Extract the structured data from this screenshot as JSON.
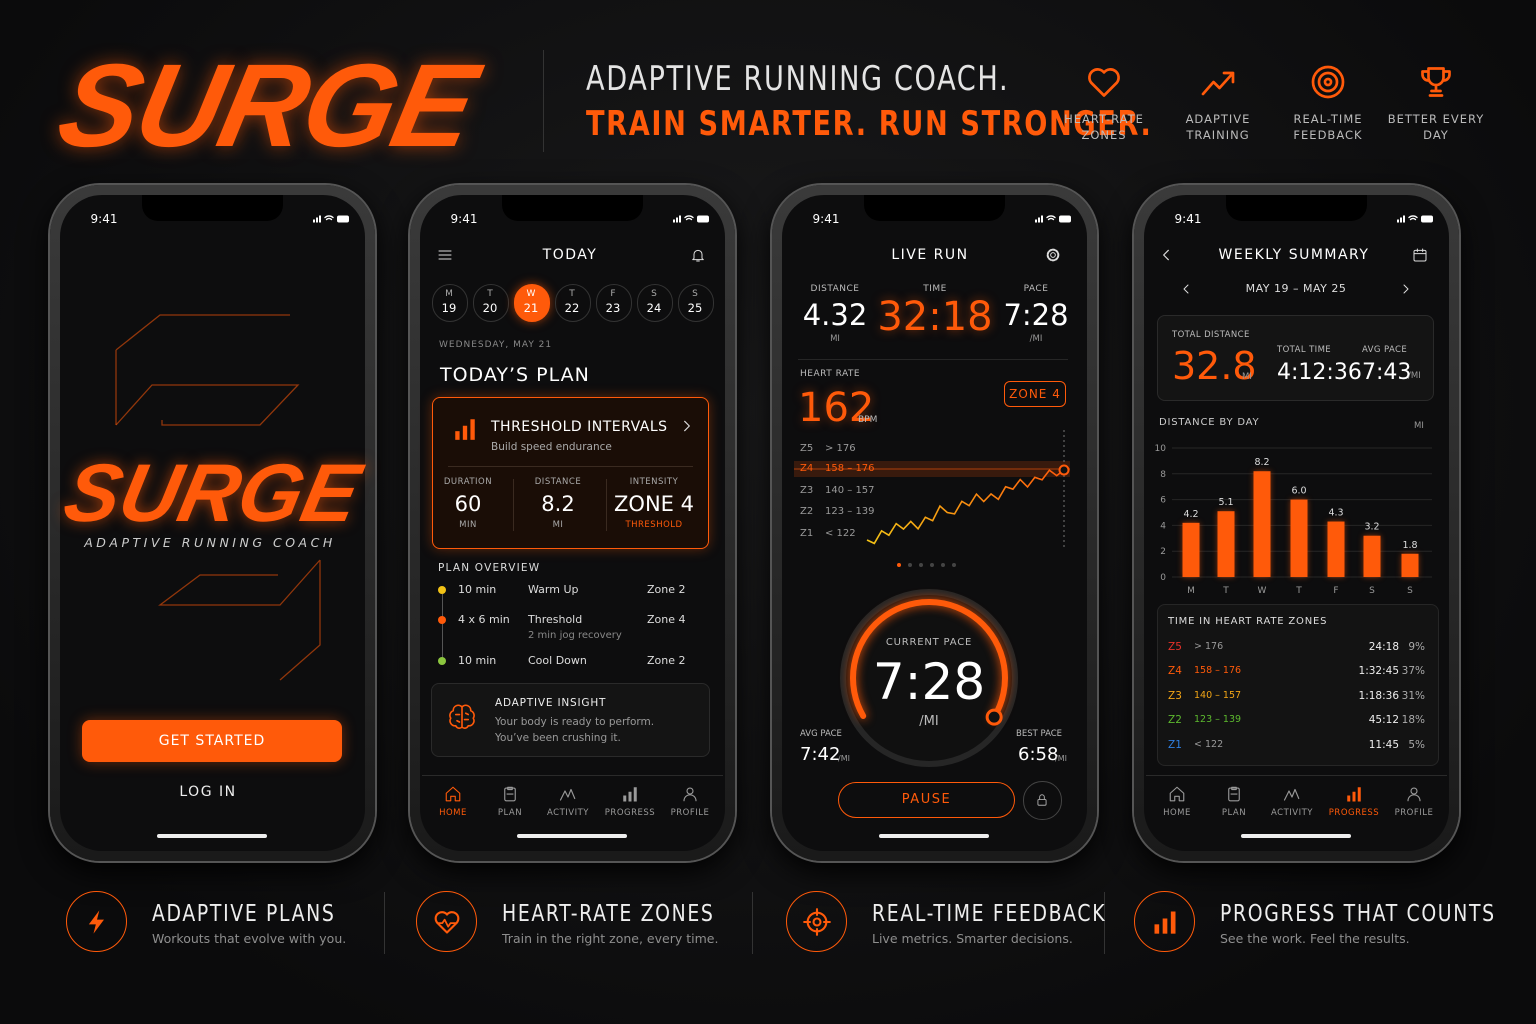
{
  "header": {
    "logo": "SURGE",
    "tagline": "ADAPTIVE RUNNING COACH.",
    "slogan": "TRAIN SMARTER. RUN STRONGER.",
    "features": [
      "HEART-RATE ZONES",
      "ADAPTIVE TRAINING",
      "REAL-TIME FEEDBACK",
      "BETTER EVERY DAY"
    ]
  },
  "phones": [
    {
      "status_time": "9:41",
      "logo": "SURGE",
      "subtitle": "ADAPTIVE RUNNING COACH",
      "primary_button": "GET STARTED",
      "secondary_button": "LOG IN"
    },
    {
      "status_time": "9:41",
      "title": "TODAY",
      "days": [
        {
          "weekday": "M",
          "date": "19"
        },
        {
          "weekday": "T",
          "date": "20"
        },
        {
          "weekday": "W",
          "date": "21"
        },
        {
          "weekday": "T",
          "date": "22"
        },
        {
          "weekday": "F",
          "date": "23"
        },
        {
          "weekday": "S",
          "date": "24"
        },
        {
          "weekday": "S",
          "date": "25"
        }
      ],
      "date_label": "WEDNESDAY, MAY 21",
      "section_title": "TODAY’S PLAN",
      "workout": {
        "name": "THRESHOLD INTERVALS",
        "description": "Build speed endurance",
        "stats": [
          {
            "label": "DURATION",
            "value": "60",
            "unit": "MIN"
          },
          {
            "label": "DISTANCE",
            "value": "8.2",
            "unit": "MI"
          },
          {
            "label": "INTENSITY",
            "value": "ZONE 4",
            "unit": "THRESHOLD"
          }
        ]
      },
      "overview": {
        "title": "PLAN OVERVIEW",
        "steps": [
          {
            "duration": "10 min",
            "name": "Warm Up",
            "zone": "Zone 2"
          },
          {
            "duration": "4 x 6 min",
            "name": "Threshold",
            "note": "2 min jog recovery",
            "zone": "Zone 4"
          },
          {
            "duration": "10 min",
            "name": "Cool Down",
            "zone": "Zone 2"
          }
        ]
      },
      "insight": {
        "title": "ADAPTIVE INSIGHT",
        "lines": [
          "Your body is ready to perform.",
          "You’ve been crushing it."
        ]
      },
      "nav": [
        "HOME",
        "PLAN",
        "ACTIVITY",
        "PROGRESS",
        "PROFILE"
      ]
    },
    {
      "status_time": "9:41",
      "title": "LIVE RUN",
      "metrics": [
        {
          "label": "DISTANCE",
          "value": "4.32",
          "unit": "MI"
        },
        {
          "label": "TIME",
          "value": "32:18"
        },
        {
          "label": "PACE",
          "value": "7:28",
          "unit": "/MI"
        }
      ],
      "heart_rate": {
        "label": "HEART RATE",
        "value": "162",
        "unit": "BPM",
        "zone": "ZONE 4",
        "zones": [
          {
            "name": "Z5",
            "range": "> 176"
          },
          {
            "name": "Z4",
            "range": "158 – 176"
          },
          {
            "name": "Z3",
            "range": "140 – 157"
          },
          {
            "name": "Z2",
            "range": "123 – 139"
          },
          {
            "name": "Z1",
            "range": "< 122"
          }
        ]
      },
      "gauge": {
        "label": "CURRENT PACE",
        "value": "7:28",
        "unit": "/MI"
      },
      "avg_pace": {
        "label": "AVG PACE",
        "value": "7:42",
        "unit": "/MI"
      },
      "best_pace": {
        "label": "BEST PACE",
        "value": "6:58",
        "unit": "/MI"
      },
      "button": "PAUSE"
    },
    {
      "status_time": "9:41",
      "title": "WEEKLY SUMMARY",
      "range": "MAY 19 – MAY 25",
      "summary": [
        {
          "label": "TOTAL DISTANCE",
          "value": "32.8",
          "unit": "MI"
        },
        {
          "label": "TOTAL TIME",
          "value": "4:12:36"
        },
        {
          "label": "AVG PACE",
          "value": "7:43",
          "unit": "/MI"
        }
      ],
      "chart": {
        "type": "bar",
        "title": "DISTANCE BY DAY",
        "unit": "MI",
        "categories": [
          "M",
          "T",
          "W",
          "T",
          "F",
          "S",
          "S"
        ],
        "values": [
          4.2,
          5.1,
          8.2,
          6,
          4.3,
          3.2,
          1.8
        ],
        "value_labels": [
          "4.2",
          "5.1",
          "8.2",
          "6.0",
          "4.3",
          "3.2",
          "1.8"
        ],
        "ylim": [
          0,
          10
        ],
        "yticks": [
          0,
          2,
          4,
          6,
          8,
          10
        ],
        "color": "#ff5a0a"
      },
      "zones": {
        "title": "TIME IN HEART RATE ZONES",
        "names": [
          "Z5",
          "Z4",
          "Z3",
          "Z2",
          "Z1"
        ],
        "ranges": [
          "> 176",
          "158 – 176",
          "140 – 157",
          "123 – 139",
          "< 122"
        ],
        "times": [
          "24:18",
          "1:32:45",
          "1:18:36",
          "45:12",
          "11:45"
        ],
        "values": [
          9,
          37,
          31,
          18,
          5
        ],
        "value_labels": [
          "9%",
          "37%",
          "31%",
          "18%",
          "5%"
        ],
        "colors": [
          "#e8322a",
          "#ff5a0a",
          "#f2a516",
          "#5cb82e",
          "#2f7fe0"
        ]
      },
      "nav": [
        "HOME",
        "PLAN",
        "ACTIVITY",
        "PROGRESS",
        "PROFILE"
      ]
    }
  ],
  "footer": [
    {
      "title": "ADAPTIVE PLANS",
      "text": "Workouts that evolve with you."
    },
    {
      "title": "HEART-RATE ZONES",
      "text": "Train in the right zone, every time."
    },
    {
      "title": "REAL-TIME FEEDBACK",
      "text": "Live metrics. Smarter decisions."
    },
    {
      "title": "PROGRESS THAT COUNTS",
      "text": "See the work. Feel the results."
    }
  ]
}
